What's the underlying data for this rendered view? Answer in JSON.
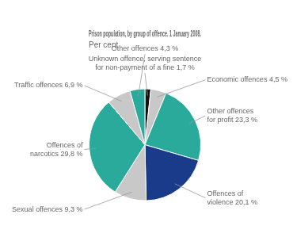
{
  "chart_data": {
    "type": "pie",
    "title": "Prison population, by group of offence. 1 January 2008.",
    "subtitle": "Per cent",
    "categories": [
      "Unknown offence, serving sentence\nfor non-payment of a fine 1,7 %",
      "Economic offences 4,5 %",
      "Other offences\nfor profit 23,3 %",
      "Offences of\nviolence 20,1 %",
      "Sexual offences 9,3 %",
      "Offences of\nnarcotics 29,8 %",
      "Traffic offences 6,9 %",
      "Other offences 4,3 %"
    ],
    "values": [
      1.7,
      4.5,
      23.3,
      20.1,
      9.3,
      29.8,
      6.9,
      4.3
    ],
    "colors": [
      "#111111",
      "#c8c8c8",
      "#2aaa9a",
      "#1a3a8a",
      "#c8c8c8",
      "#2aaa9a",
      "#c8c8c8",
      "#2aaa9a"
    ]
  }
}
